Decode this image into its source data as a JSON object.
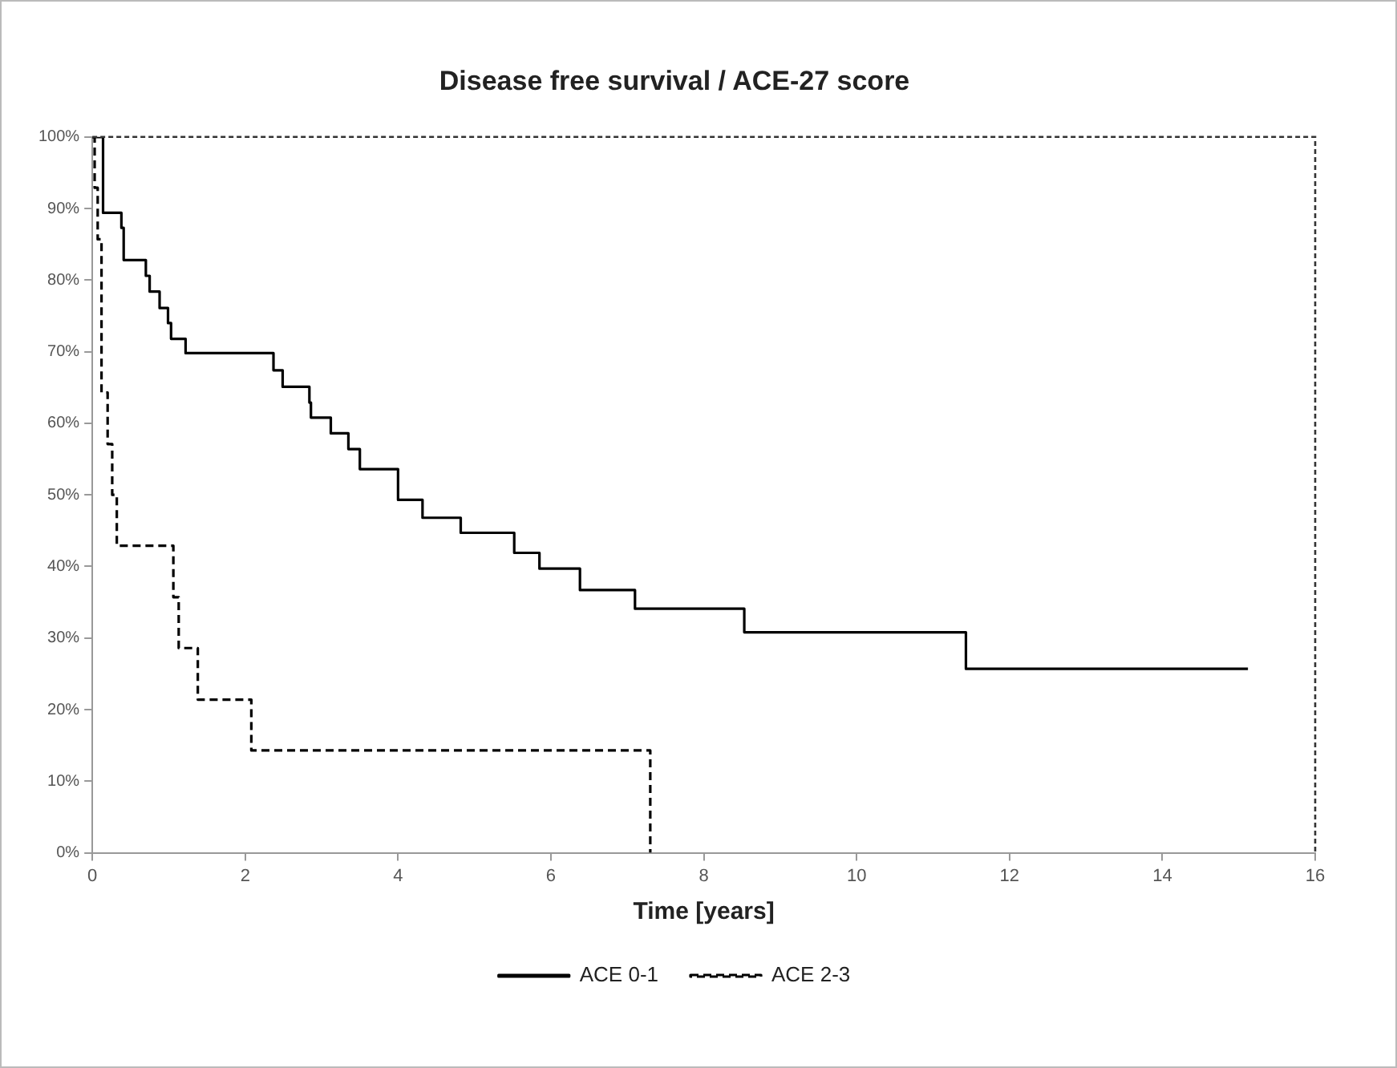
{
  "chart_data": {
    "type": "step",
    "title": "Disease free survival / ACE-27 score",
    "xlabel": "Time [years]",
    "xlim": [
      0,
      16
    ],
    "xticks": [
      0,
      2,
      4,
      6,
      8,
      10,
      12,
      14,
      16
    ],
    "ylim": [
      0,
      100
    ],
    "yticks": [
      {
        "value": 0,
        "label": "0%"
      },
      {
        "value": 10,
        "label": "10%"
      },
      {
        "value": 20,
        "label": "20%"
      },
      {
        "value": 30,
        "label": "30%"
      },
      {
        "value": 40,
        "label": "40%"
      },
      {
        "value": 50,
        "label": "50%"
      },
      {
        "value": 60,
        "label": "60%"
      },
      {
        "value": 70,
        "label": "70%"
      },
      {
        "value": 80,
        "label": "80%"
      },
      {
        "value": 90,
        "label": "90%"
      },
      {
        "value": 100,
        "label": "100%"
      }
    ],
    "grid": false,
    "legend": "bottom",
    "marker": "none",
    "series": [
      {
        "name": "ACE 0-1",
        "color": "#000000",
        "line_style": "solid",
        "x": [
          0,
          0.14,
          0.38,
          0.41,
          0.7,
          0.75,
          0.88,
          0.99,
          1.03,
          1.22,
          2.37,
          2.49,
          2.84,
          2.86,
          3.12,
          3.35,
          3.5,
          4.0,
          4.32,
          4.82,
          5.52,
          5.85,
          6.38,
          7.1,
          8.53,
          11.43,
          15.12
        ],
        "values": [
          100,
          89.4,
          87.3,
          82.8,
          80.6,
          78.4,
          76.1,
          74.0,
          71.8,
          69.8,
          67.4,
          65.1,
          62.9,
          60.8,
          58.6,
          56.4,
          53.6,
          49.3,
          46.8,
          44.7,
          41.9,
          39.7,
          36.7,
          34.1,
          30.8,
          25.7,
          25.7
        ]
      },
      {
        "name": "ACE 2-3",
        "color": "#000000",
        "line_style": "dashed",
        "x": [
          0,
          0.03,
          0.07,
          0.12,
          0.2,
          0.26,
          0.32,
          1.06,
          1.13,
          1.38,
          2.08,
          7.3
        ],
        "values": [
          100,
          92.9,
          85.7,
          64.3,
          57.1,
          50.0,
          42.9,
          35.7,
          28.6,
          21.4,
          14.3,
          0
        ]
      }
    ]
  }
}
